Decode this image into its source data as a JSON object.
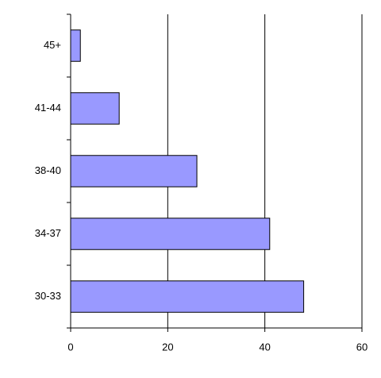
{
  "chart_data": {
    "type": "bar",
    "orientation": "horizontal",
    "categories": [
      "45+",
      "41-44",
      "38-40",
      "34-37",
      "30-33"
    ],
    "values": [
      2,
      10,
      26,
      41,
      48
    ],
    "color": "#9999ff",
    "xlim": [
      0,
      60
    ],
    "xticks": [
      0,
      20,
      40,
      60
    ],
    "grid": true
  }
}
